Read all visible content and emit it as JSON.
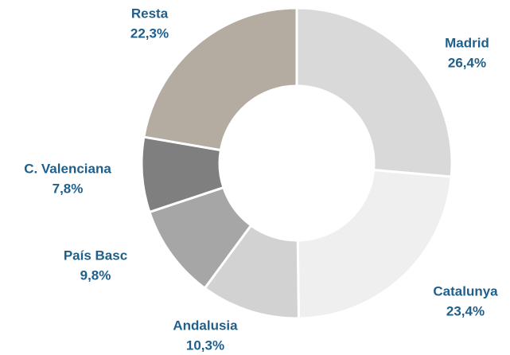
{
  "chart_data": {
    "type": "pie",
    "categories": [
      "Madrid",
      "Catalunya",
      "Andalusia",
      "País Basc",
      "C. Valenciana",
      "Resta"
    ],
    "values": [
      26.4,
      23.4,
      10.3,
      9.8,
      7.8,
      22.3
    ],
    "value_labels": [
      "26,4%",
      "23,4%",
      "10,3%",
      "9,8%",
      "7,8%",
      "22,3%"
    ],
    "colors": [
      "#d9d9d9",
      "#efefef",
      "#d2d2d2",
      "#a6a6a6",
      "#7f7f7f",
      "#b4aba1"
    ]
  }
}
